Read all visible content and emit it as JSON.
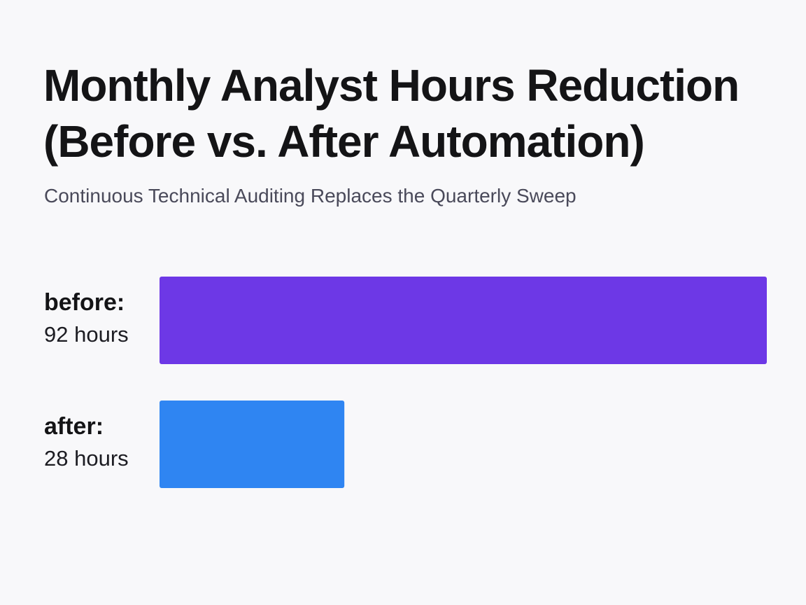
{
  "title": "Monthly Analyst Hours Reduction (Before vs. After Automation)",
  "subtitle": "Continuous Technical Auditing Replaces the Quarterly Sweep",
  "chart_data": {
    "type": "bar",
    "orientation": "horizontal",
    "title": "Monthly Analyst Hours Reduction (Before vs. After Automation)",
    "subtitle": "Continuous Technical Auditing Replaces the Quarterly Sweep",
    "categories": [
      "before:",
      "after:"
    ],
    "values": [
      92,
      28
    ],
    "value_labels": [
      "92 hours",
      "28 hours"
    ],
    "colors": [
      "#6d38e6",
      "#2f85f2"
    ],
    "xlim": [
      0,
      92
    ],
    "grid": false,
    "legend": "none"
  }
}
